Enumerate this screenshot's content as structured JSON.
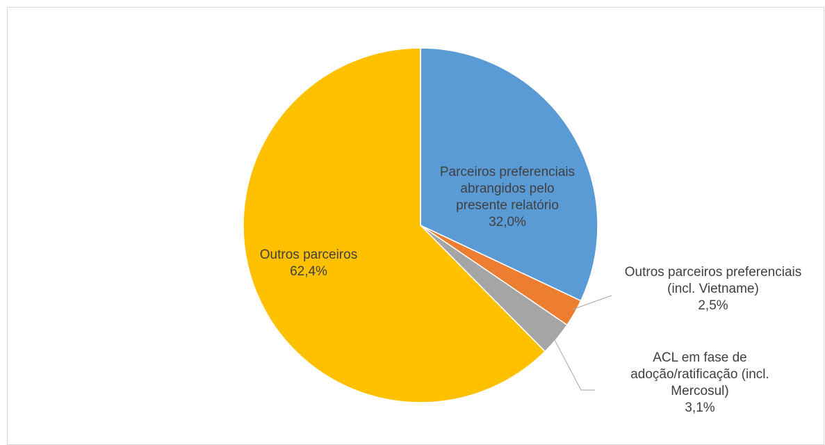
{
  "chart_data": {
    "type": "pie",
    "start_angle_deg": 0,
    "direction": "clockwise",
    "slices": [
      {
        "lines": [
          "Parceiros preferenciais",
          "abrangidos pelo",
          "presente relatório"
        ],
        "pct": "32,0%",
        "value": 32.0,
        "color": "#5b9bd5"
      },
      {
        "lines": [
          "Outros parceiros preferenciais",
          "(incl. Vietname)"
        ],
        "pct": "2,5%",
        "value": 2.5,
        "color": "#ed7d31"
      },
      {
        "lines": [
          "ACL em fase de",
          "adoção/ratificação (incl.",
          "Mercosul)"
        ],
        "pct": "3,1%",
        "value": 3.1,
        "color": "#a5a5a5"
      },
      {
        "lines": [
          "Outros parceiros"
        ],
        "pct": "62,4%",
        "value": 62.4,
        "color": "#ffc000"
      }
    ]
  }
}
